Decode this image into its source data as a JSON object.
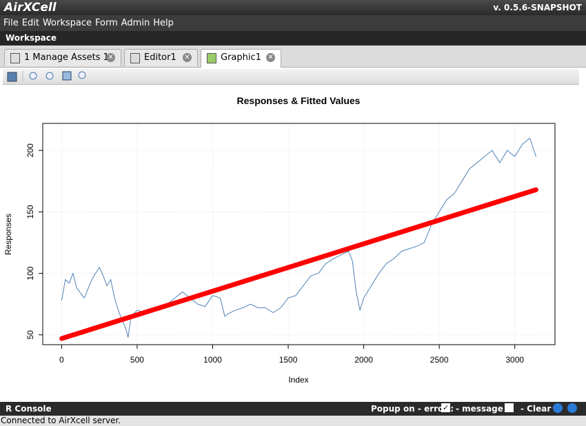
{
  "app": {
    "logo": "AirXCell",
    "version": "v. 0.5.6-SNAPSHOT",
    "menu": [
      "File",
      "Edit",
      "Workspace",
      "Form",
      "Admin",
      "Help"
    ],
    "workspace_title": "Workspace",
    "tabs": [
      "1 Manage Assets 1",
      "Editor1",
      "Graphic1"
    ],
    "console_title": "R Console",
    "popup_error": "Popup on - error :",
    "popup_message": "- message :",
    "clear": "- Clear",
    "status": "Connected to AirXcell server."
  },
  "chart_data": {
    "type": "line",
    "title": "Responses & Fitted Values",
    "x_label": "Index",
    "y_label": "Responses",
    "xlim": [
      -125,
      3266
    ],
    "ylim": [
      42,
      222
    ],
    "xticks": [
      0,
      500,
      1000,
      1500,
      2000,
      2500,
      3000
    ],
    "yticks": [
      50,
      100,
      150,
      200
    ],
    "grid": true,
    "series": [
      {
        "color": "#4f81b4",
        "width": 1,
        "x": [
          0,
          25,
          50,
          75,
          100,
          150,
          200,
          250,
          275,
          300,
          325,
          350,
          375,
          400,
          425,
          440,
          460,
          500,
          550,
          600,
          650,
          700,
          750,
          800,
          850,
          900,
          950,
          1000,
          1050,
          1080,
          1100,
          1150,
          1200,
          1250,
          1300,
          1350,
          1400,
          1450,
          1500,
          1550,
          1600,
          1650,
          1700,
          1750,
          1800,
          1850,
          1900,
          1925,
          1950,
          1975,
          2000,
          2050,
          2100,
          2150,
          2200,
          2250,
          2300,
          2350,
          2400,
          2450,
          2500,
          2550,
          2600,
          2650,
          2700,
          2750,
          2800,
          2850,
          2900,
          2950,
          3000,
          3050,
          3100,
          3140
        ],
        "values": [
          78,
          95,
          92,
          100,
          88,
          80,
          95,
          105,
          98,
          90,
          95,
          80,
          70,
          62,
          55,
          48,
          65,
          70,
          68,
          72,
          70,
          75,
          80,
          85,
          80,
          75,
          73,
          82,
          80,
          65,
          67,
          70,
          72,
          75,
          72,
          72,
          68,
          72,
          80,
          82,
          90,
          98,
          100,
          108,
          112,
          115,
          118,
          110,
          85,
          70,
          80,
          90,
          100,
          108,
          112,
          118,
          120,
          122,
          125,
          140,
          150,
          160,
          165,
          175,
          185,
          190,
          195,
          200,
          190,
          200,
          195,
          205,
          210,
          195
        ]
      },
      {
        "color": "#ff0000",
        "width": 7,
        "x": [
          1,
          3140
        ],
        "values": [
          47,
          168
        ]
      }
    ]
  }
}
